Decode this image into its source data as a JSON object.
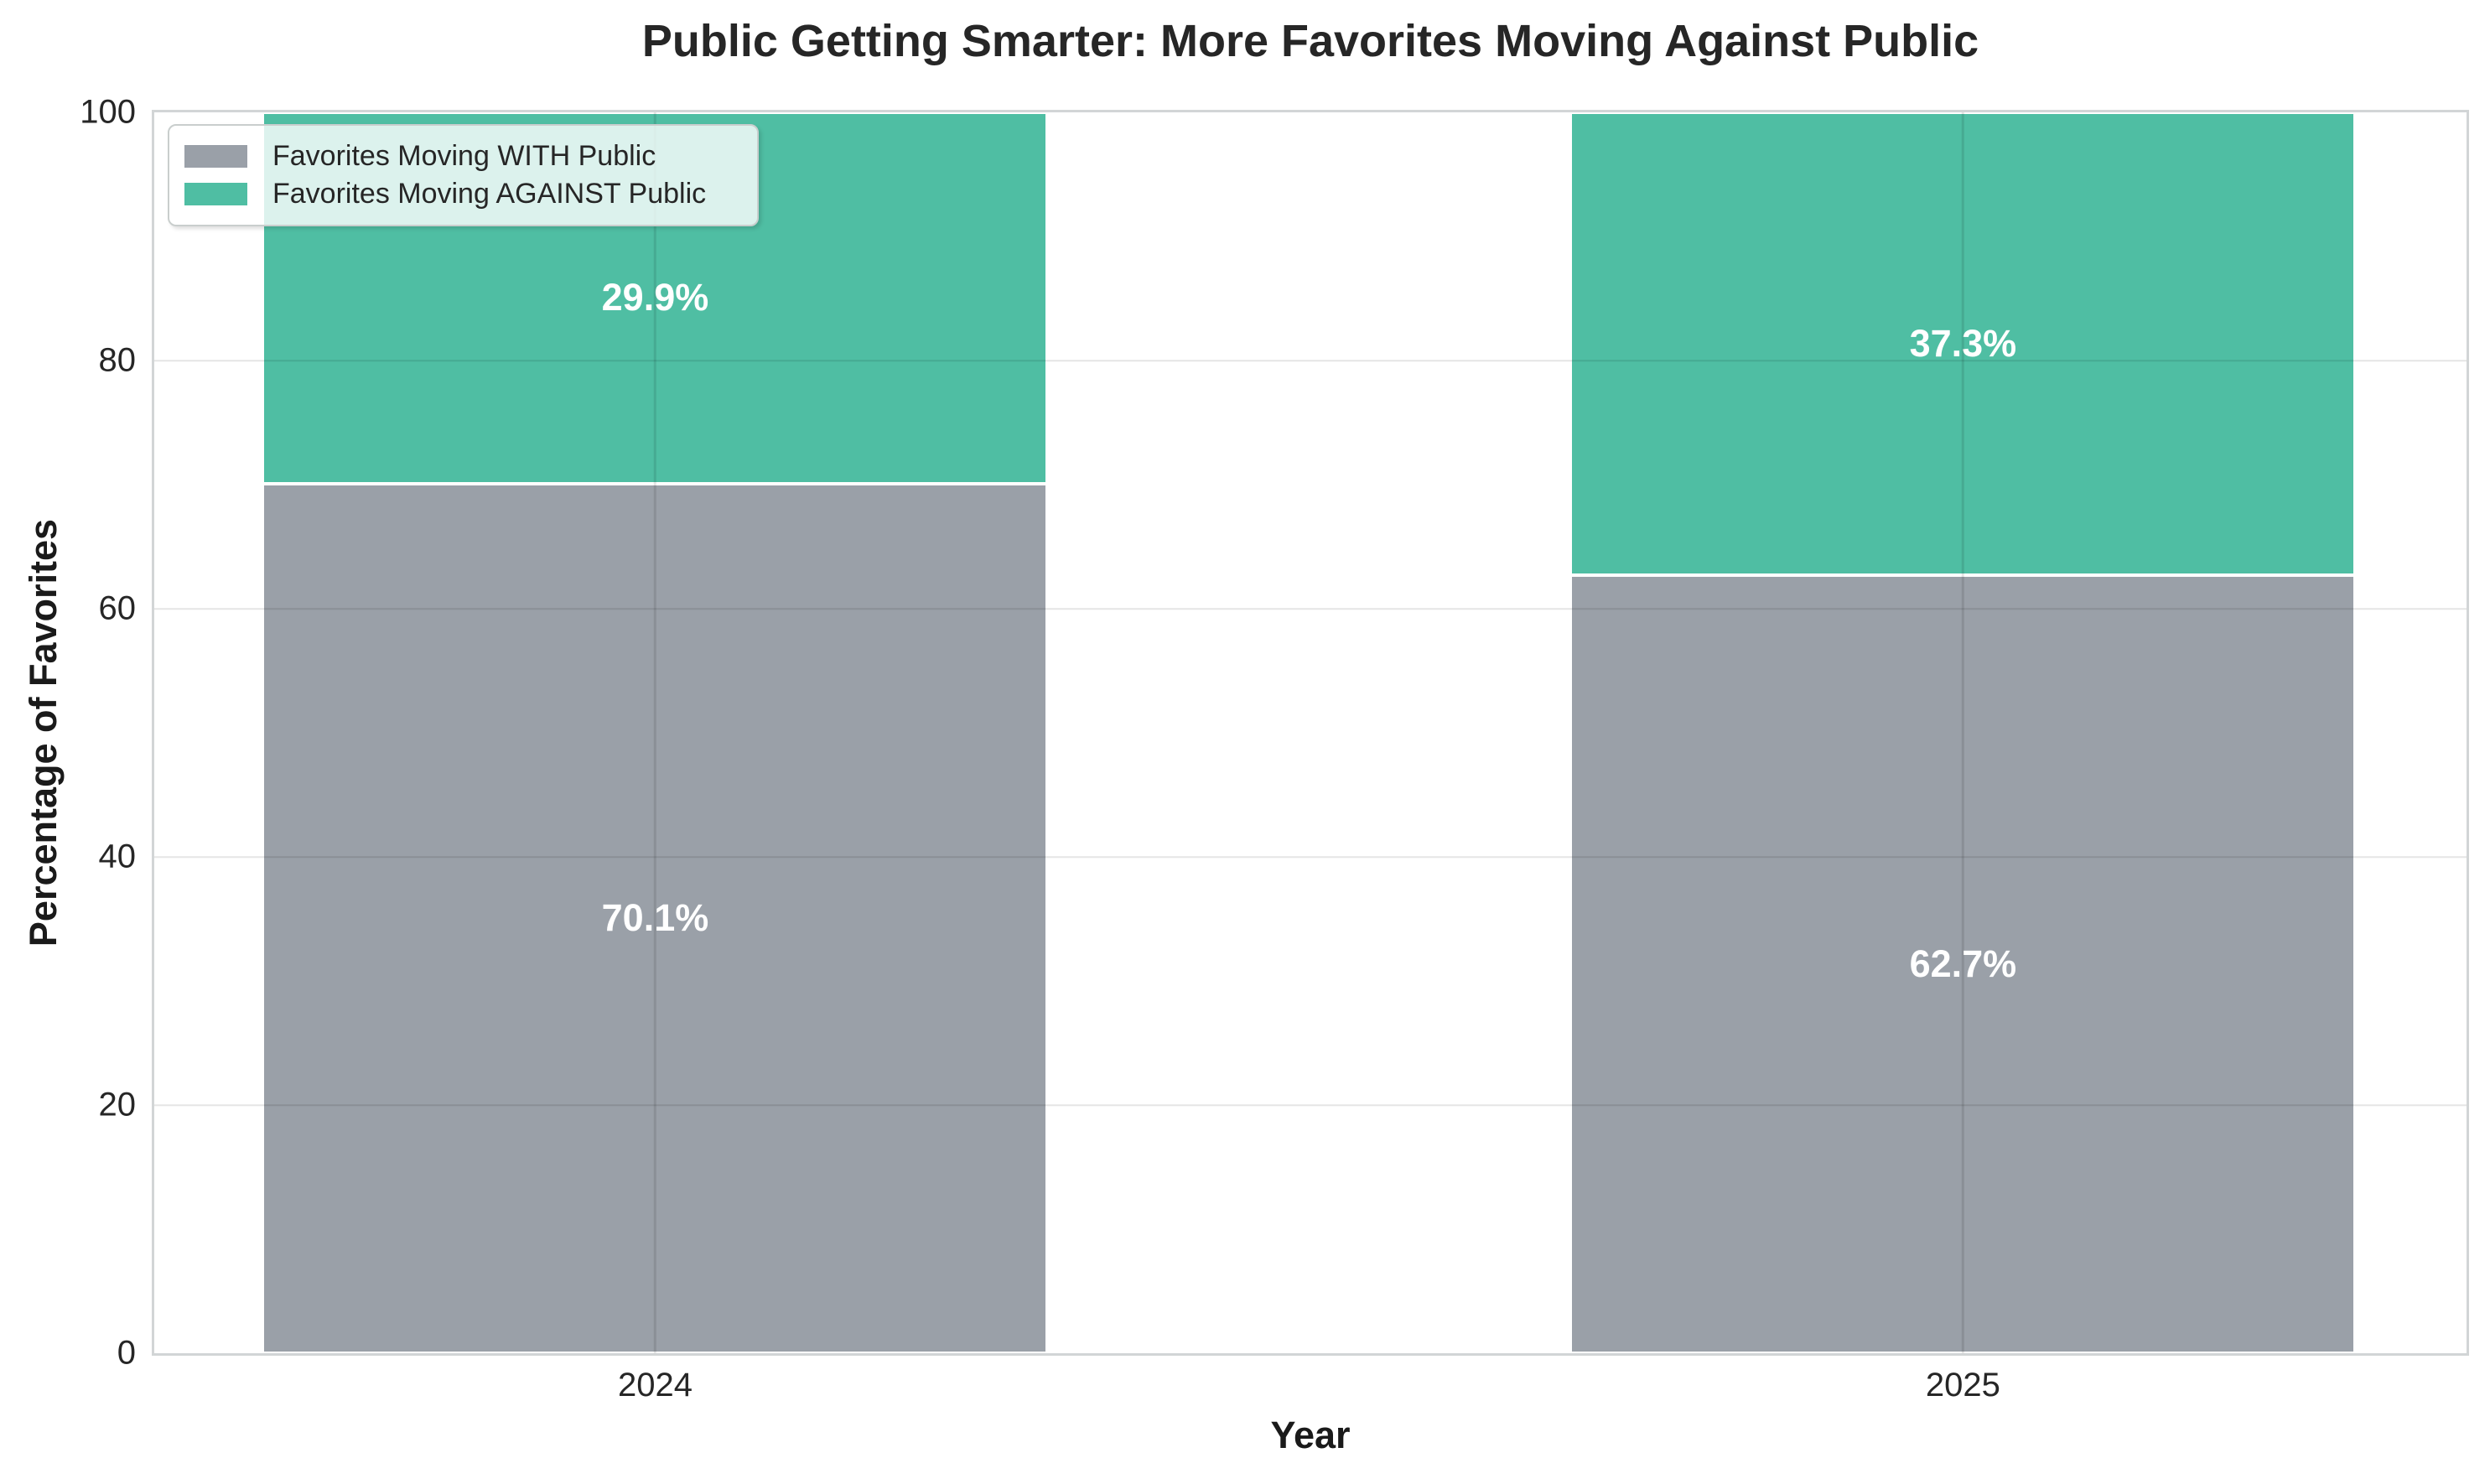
{
  "chart_data": {
    "type": "bar",
    "stacked": true,
    "title": "Public Getting Smarter: More Favorites Moving Against Public",
    "xlabel": "Year",
    "ylabel": "Percentage of Favorites",
    "categories": [
      "2024",
      "2025"
    ],
    "series": [
      {
        "name": "Favorites Moving WITH Public",
        "color": "#9aa0a8",
        "values": [
          70.1,
          62.7
        ],
        "bar_labels": [
          "70.1%",
          "62.7%"
        ]
      },
      {
        "name": "Favorites Moving AGAINST Public",
        "color": "#4fbea3",
        "values": [
          29.9,
          37.3
        ],
        "bar_labels": [
          "29.9%",
          "37.3%"
        ]
      }
    ],
    "ylim": [
      0,
      100
    ],
    "yticks": [
      "0",
      "20",
      "40",
      "60",
      "80",
      "100"
    ],
    "grid": true,
    "legend_position": "upper-left",
    "bar_label_color": "#ffffff",
    "colors": {
      "grid": "rgba(0,0,0,0.10)",
      "spine": "#d2d5d6",
      "text": "#262626"
    }
  }
}
